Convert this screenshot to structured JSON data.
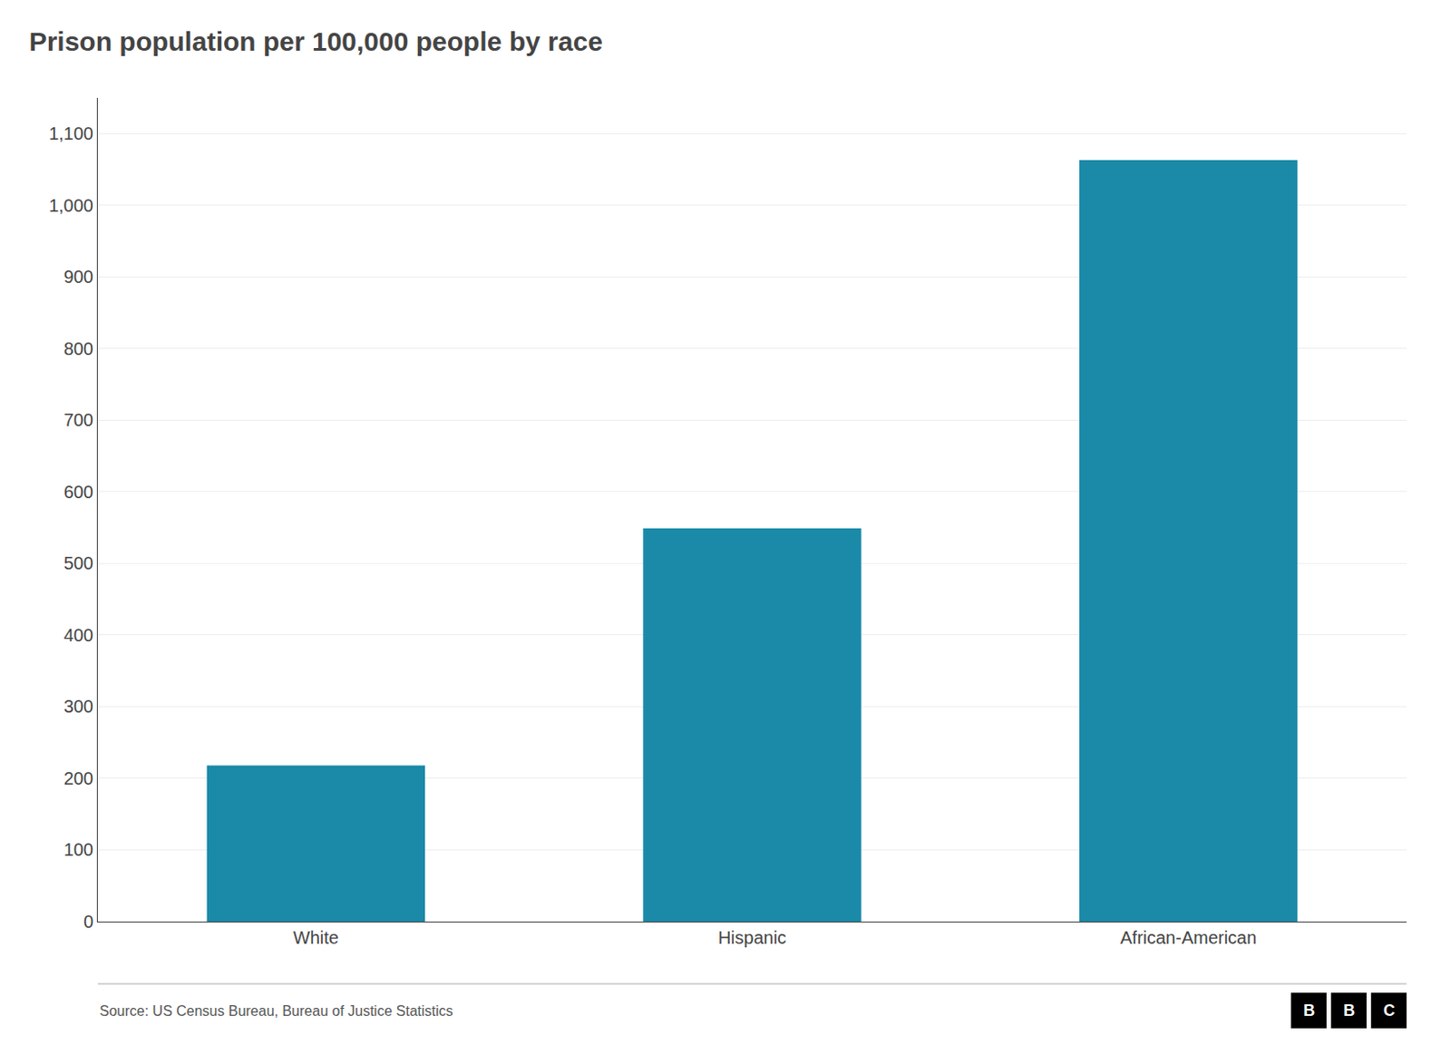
{
  "chart_data": {
    "type": "bar",
    "title": "Prison population per 100,000 people by race",
    "categories": [
      "White",
      "Hispanic",
      "African-American"
    ],
    "values": [
      218,
      549,
      1063
    ],
    "color": "#1a8aa8",
    "ylim": [
      0,
      1150
    ],
    "yticks": [
      0,
      100,
      200,
      300,
      400,
      500,
      600,
      700,
      800,
      900,
      {
        "value": 1000,
        "label": "1,000"
      },
      {
        "value": 1100,
        "label": "1,100"
      }
    ],
    "grid": true,
    "annotations": [
      "Source: US Census Bureau, Bureau of Justice Statistics",
      "B",
      "B",
      "C"
    ]
  }
}
